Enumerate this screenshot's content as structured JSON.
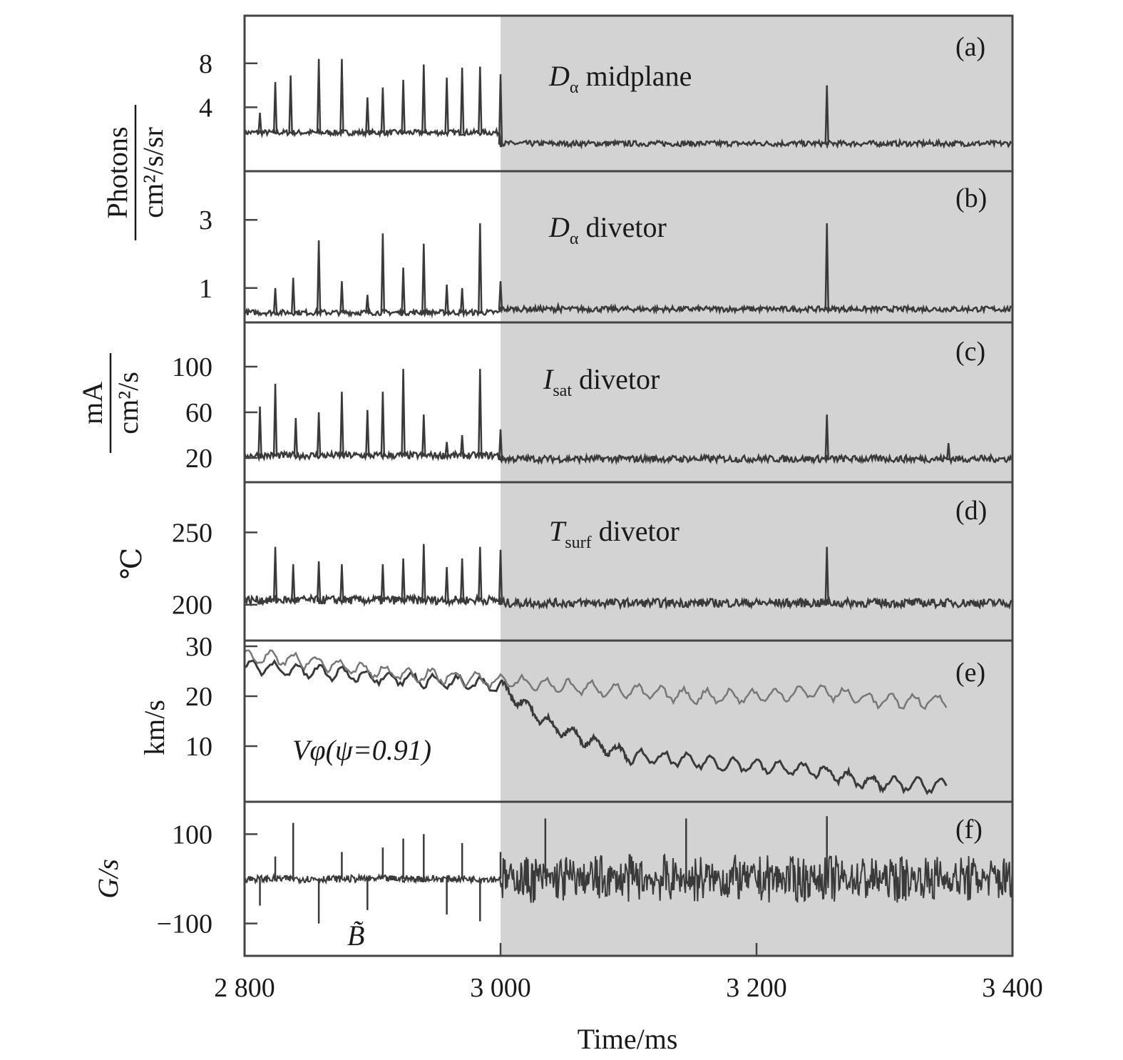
{
  "chart_data": {
    "type": "line",
    "shared_x": {
      "xlabel": "Time/ms",
      "xlim": [
        2800,
        3400
      ],
      "xticks": [
        2800,
        3000,
        3200,
        3400
      ],
      "xtick_labels": [
        "2 800",
        "3 000",
        "3 200",
        "3 400"
      ]
    },
    "shaded_region": {
      "x_start": 3000,
      "x_end": 3400,
      "color": "#d3d3d3"
    },
    "trace_color": "#3a3a3a",
    "trace_color_light": "#777777",
    "axis_titles": {
      "photons_num": "Photons",
      "photons_den": "cm²/s/sr",
      "isat_num": "mA",
      "isat_den": "cm²/s",
      "temp": "℃",
      "velocity": "km/s",
      "bdot": "G/s"
    },
    "panels": [
      {
        "id": "a",
        "panel_label": "(a)",
        "label_main": "D",
        "label_sub": "α",
        "label_rest": " midplane",
        "ylim": [
          0,
          10
        ],
        "yticks": [
          8,
          4
        ],
        "ytick_labels": [
          "8",
          "4"
        ],
        "baseline_before": 1.6,
        "baseline_after": 0.6,
        "spikes": [
          [
            2812,
            3.5
          ],
          [
            2824,
            6.3
          ],
          [
            2836,
            6.9
          ],
          [
            2858,
            8.4
          ],
          [
            2876,
            8.4
          ],
          [
            2896,
            4.9
          ],
          [
            2908,
            5.8
          ],
          [
            2924,
            6.5
          ],
          [
            2940,
            7.9
          ],
          [
            2958,
            6.7
          ],
          [
            2970,
            7.6
          ],
          [
            2984,
            7.7
          ],
          [
            3000,
            7.0
          ],
          [
            3255,
            6.0
          ]
        ],
        "noise": 0.25,
        "series": [
          {
            "values_note_free": true
          }
        ]
      },
      {
        "id": "b",
        "panel_label": "(b)",
        "label_main": "D",
        "label_sub": "α",
        "label_rest": " divetor",
        "ylim": [
          0.2,
          3.8
        ],
        "yticks": [
          3,
          1
        ],
        "ytick_labels": [
          "3",
          "1"
        ],
        "baseline_before": 0.25,
        "baseline_after": 0.35,
        "spikes": [
          [
            2824,
            1.0
          ],
          [
            2838,
            1.3
          ],
          [
            2858,
            2.4
          ],
          [
            2876,
            1.2
          ],
          [
            2896,
            0.8
          ],
          [
            2908,
            2.6
          ],
          [
            2924,
            1.6
          ],
          [
            2940,
            2.3
          ],
          [
            2958,
            1.1
          ],
          [
            2970,
            1.0
          ],
          [
            2984,
            2.9
          ],
          [
            3000,
            1.2
          ],
          [
            3045,
            0.5
          ],
          [
            3255,
            2.9
          ]
        ],
        "noise": 0.08
      },
      {
        "id": "c",
        "panel_label": "(c)",
        "label_main": "I",
        "label_sub": "sat",
        "label_rest": " divetor",
        "ylim": [
          10,
          120
        ],
        "yticks": [
          100,
          60,
          20
        ],
        "ytick_labels": [
          "100",
          "60",
          "20"
        ],
        "baseline_before": 21,
        "baseline_after": 18,
        "spikes": [
          [
            2812,
            65
          ],
          [
            2824,
            85
          ],
          [
            2840,
            55
          ],
          [
            2858,
            60
          ],
          [
            2876,
            78
          ],
          [
            2896,
            62
          ],
          [
            2908,
            78
          ],
          [
            2924,
            98
          ],
          [
            2940,
            58
          ],
          [
            2958,
            34
          ],
          [
            2970,
            40
          ],
          [
            2984,
            98
          ],
          [
            3000,
            45
          ],
          [
            3255,
            58
          ],
          [
            3350,
            33
          ]
        ],
        "noise": 3
      },
      {
        "id": "d",
        "panel_label": "(d)",
        "label_main": "T",
        "label_sub": "surf",
        "label_rest": " divetor",
        "ylim": [
          190,
          265
        ],
        "yticks": [
          250,
          200
        ],
        "ytick_labels": [
          "250",
          "200"
        ],
        "baseline_before": 202,
        "baseline_after": 200,
        "spikes": [
          [
            2824,
            240
          ],
          [
            2838,
            228
          ],
          [
            2858,
            230
          ],
          [
            2876,
            228
          ],
          [
            2908,
            228
          ],
          [
            2924,
            232
          ],
          [
            2940,
            242
          ],
          [
            2958,
            226
          ],
          [
            2970,
            232
          ],
          [
            2984,
            240
          ],
          [
            3000,
            238
          ],
          [
            3255,
            240
          ]
        ],
        "noise": 3
      },
      {
        "id": "e",
        "panel_label": "(e)",
        "annotation": "Vφ(ψ=0.91)",
        "ylim": [
          0,
          30
        ],
        "yticks": [
          30,
          20,
          10
        ],
        "ytick_labels": [
          "30",
          "20",
          "10"
        ],
        "series": [
          {
            "color_key": "dark",
            "x": [
              2800,
              2850,
              2900,
              2950,
              3000,
              3020,
              3040,
              3060,
              3080,
              3100,
              3150,
              3200,
              3250,
              3280,
              3300,
              3350
            ],
            "y": [
              26,
              25,
              24,
              23,
              22,
              18,
              14,
              12,
              10,
              8,
              7,
              6,
              5,
              3,
              2.5,
              2
            ]
          },
          {
            "color_key": "light",
            "x": [
              2800,
              2850,
              2900,
              2950,
              3000,
              3050,
              3100,
              3150,
              3200,
              3250,
              3300,
              3350
            ],
            "y": [
              28,
              27,
              25,
              24,
              23,
              22,
              21,
              20,
              20,
              21,
              19,
              19
            ]
          }
        ]
      },
      {
        "id": "f",
        "panel_label": "(f)",
        "annotation": "B̃",
        "ylim": [
          -150,
          150
        ],
        "yticks": [
          100,
          -100
        ],
        "ytick_labels": [
          "100",
          "−100"
        ],
        "envelope_before": 8,
        "envelope_after": 55,
        "spikes": [
          [
            2812,
            -60
          ],
          [
            2824,
            50
          ],
          [
            2838,
            125
          ],
          [
            2858,
            -100
          ],
          [
            2876,
            60
          ],
          [
            2896,
            -70
          ],
          [
            2908,
            70
          ],
          [
            2924,
            90
          ],
          [
            2940,
            100
          ],
          [
            2958,
            -80
          ],
          [
            2970,
            80
          ],
          [
            2984,
            -95
          ],
          [
            3000,
            60
          ],
          [
            3035,
            135
          ],
          [
            3145,
            135
          ],
          [
            3255,
            140
          ]
        ]
      }
    ]
  }
}
